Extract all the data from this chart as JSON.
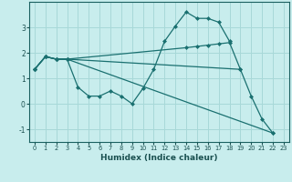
{
  "xlabel": "Humidex (Indice chaleur)",
  "background_color": "#c8eded",
  "grid_color": "#a8d8d8",
  "line_color": "#1a7070",
  "xlim": [
    -0.5,
    23.5
  ],
  "ylim": [
    -1.5,
    4.0
  ],
  "yticks": [
    -1,
    0,
    1,
    2,
    3
  ],
  "xticks": [
    0,
    1,
    2,
    3,
    4,
    5,
    6,
    7,
    8,
    9,
    10,
    11,
    12,
    13,
    14,
    15,
    16,
    17,
    18,
    19,
    20,
    21,
    22,
    23
  ],
  "series": [
    {
      "x": [
        0,
        1,
        2,
        3,
        4,
        5,
        6,
        7,
        8,
        9,
        10,
        11,
        12,
        13,
        14,
        15,
        16,
        17,
        18
      ],
      "y": [
        1.35,
        1.85,
        1.75,
        1.75,
        0.65,
        0.3,
        0.3,
        0.5,
        0.3,
        0.0,
        0.6,
        1.35,
        2.45,
        3.05,
        3.6,
        3.35,
        3.35,
        3.2,
        2.45
      ]
    },
    {
      "x": [
        0,
        1,
        2,
        3,
        14,
        15,
        16,
        17,
        18,
        19
      ],
      "y": [
        1.35,
        1.85,
        1.75,
        1.75,
        2.2,
        2.25,
        2.3,
        2.35,
        2.4,
        1.35
      ]
    },
    {
      "x": [
        0,
        1,
        2,
        3,
        19,
        20,
        21,
        22
      ],
      "y": [
        1.35,
        1.85,
        1.75,
        1.75,
        1.35,
        0.3,
        -0.6,
        -1.15
      ]
    },
    {
      "x": [
        0,
        1,
        2,
        3,
        22
      ],
      "y": [
        1.35,
        1.85,
        1.75,
        1.75,
        -1.15
      ]
    }
  ]
}
